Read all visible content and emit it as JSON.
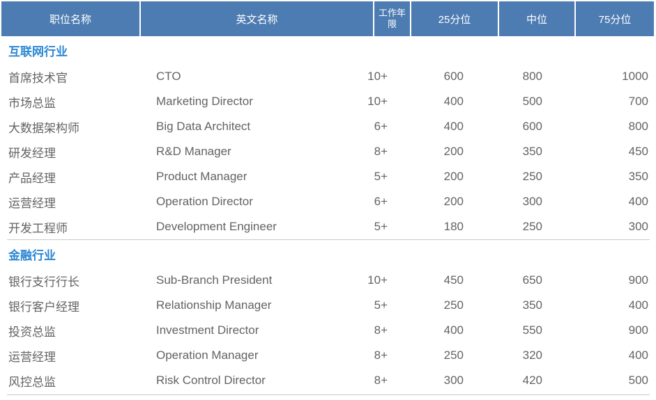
{
  "table": {
    "columns": [
      {
        "label": "职位名称"
      },
      {
        "label": "英文名称"
      },
      {
        "label": "工作年限"
      },
      {
        "label": "25分位"
      },
      {
        "label": "中位"
      },
      {
        "label": "75分位"
      }
    ],
    "sections": [
      {
        "title": "互联网行业",
        "rows": [
          {
            "cn": "首席技术官",
            "en": "CTO",
            "years": "10+",
            "p25": "600",
            "median": "800",
            "p75": "1000"
          },
          {
            "cn": "市场总监",
            "en": "Marketing Director",
            "years": "10+",
            "p25": "400",
            "median": "500",
            "p75": "700"
          },
          {
            "cn": "大数据架构师",
            "en": "Big Data Architect",
            "years": "6+",
            "p25": "400",
            "median": "600",
            "p75": "800"
          },
          {
            "cn": "研发经理",
            "en": "R&D Manager",
            "years": "8+",
            "p25": "200",
            "median": "350",
            "p75": "450"
          },
          {
            "cn": "产品经理",
            "en": "Product Manager",
            "years": "5+",
            "p25": "200",
            "median": "250",
            "p75": "350"
          },
          {
            "cn": "运营经理",
            "en": "Operation Director",
            "years": "6+",
            "p25": "200",
            "median": "300",
            "p75": "400"
          },
          {
            "cn": "开发工程师",
            "en": "Development Engineer",
            "years": "5+",
            "p25": "180",
            "median": "250",
            "p75": "300"
          }
        ]
      },
      {
        "title": "金融行业",
        "rows": [
          {
            "cn": "银行支行行长",
            "en": "Sub-Branch President",
            "years": "10+",
            "p25": "450",
            "median": "650",
            "p75": "900"
          },
          {
            "cn": "银行客户经理",
            "en": "Relationship Manager",
            "years": "5+",
            "p25": "250",
            "median": "350",
            "p75": "400"
          },
          {
            "cn": "投资总监",
            "en": "Investment Director",
            "years": "8+",
            "p25": "400",
            "median": "550",
            "p75": "900"
          },
          {
            "cn": "运营经理",
            "en": "Operation Manager",
            "years": "8+",
            "p25": "250",
            "median": "320",
            "p75": "400"
          },
          {
            "cn": "风控总监",
            "en": "Risk Control Director",
            "years": "8+",
            "p25": "300",
            "median": "420",
            "p75": "500"
          }
        ]
      }
    ]
  },
  "colors": {
    "header_bg": "#4d7cb2",
    "header_text": "#ffffff",
    "section_title_text": "#2b87d3",
    "body_text": "#636363",
    "divider": "#c9c9c9"
  }
}
